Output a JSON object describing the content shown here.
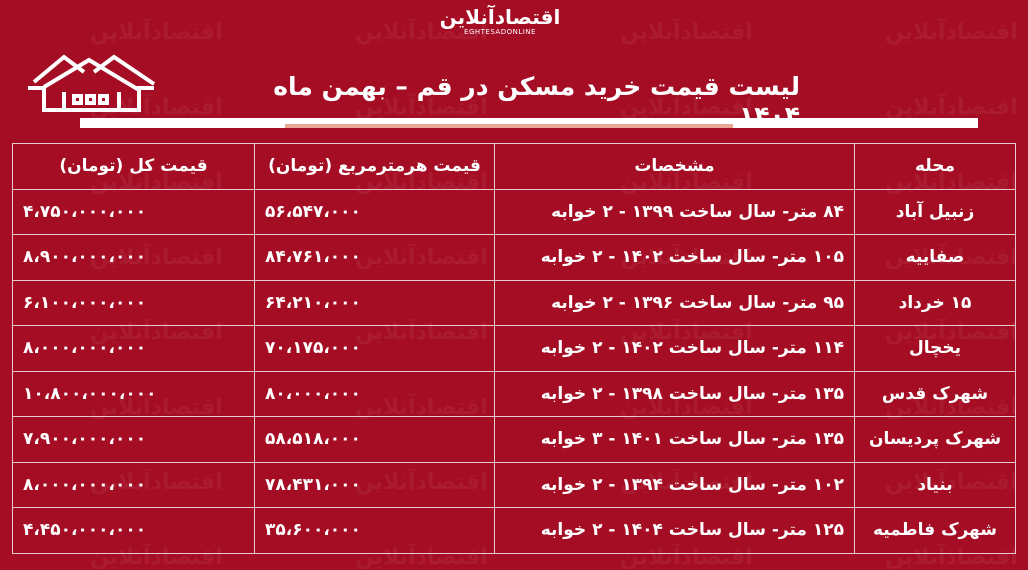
{
  "logo": {
    "fa": "اقتصادآنلاین",
    "en": "EGHTESADONLINE"
  },
  "title": "لیست قیمت خرید مسکن در قم – بهمن ماه ۱۴۰۴",
  "colors": {
    "background": "#a50d24",
    "text": "#ffffff",
    "accent_bar": "#e9a693"
  },
  "icons": [
    "house-icon"
  ],
  "table": {
    "headers": [
      "محله",
      "مشخصات",
      "قیمت هرمترمربع (تومان)",
      "قیمت کل (تومان)"
    ],
    "rows": [
      [
        "زنبیل آباد",
        "۸۴ متر- سال ساخت ۱۳۹۹ - ۲ خوابه",
        "۵۶،۵۴۷،۰۰۰",
        "۴،۷۵۰،۰۰۰،۰۰۰"
      ],
      [
        "صفاییه",
        "۱۰۵ متر- سال ساخت ۱۴۰۲ - ۲ خوابه",
        "۸۴،۷۶۱،۰۰۰",
        "۸،۹۰۰،۰۰۰،۰۰۰"
      ],
      [
        "۱۵ خرداد",
        "۹۵ متر- سال ساخت ۱۳۹۶ - ۲ خوابه",
        "۶۴،۲۱۰،۰۰۰",
        "۶،۱۰۰،۰۰۰،۰۰۰"
      ],
      [
        "یخچال",
        "۱۱۴ متر- سال ساخت ۱۴۰۲ - ۲ خوابه",
        "۷۰،۱۷۵،۰۰۰",
        "۸،۰۰۰،۰۰۰،۰۰۰"
      ],
      [
        "شهرک قدس",
        "۱۳۵ متر- سال ساخت ۱۳۹۸ - ۲ خوابه",
        "۸۰،۰۰۰،۰۰۰",
        "۱۰،۸۰۰،۰۰۰،۰۰۰"
      ],
      [
        "شهرک پردیسان",
        "۱۳۵ متر- سال ساخت ۱۴۰۱ - ۳ خوابه",
        "۵۸،۵۱۸،۰۰۰",
        "۷،۹۰۰،۰۰۰،۰۰۰"
      ],
      [
        "بنیاد",
        "۱۰۲ متر- سال ساخت ۱۳۹۴ - ۲ خوابه",
        "۷۸،۴۳۱،۰۰۰",
        "۸،۰۰۰،۰۰۰،۰۰۰"
      ],
      [
        "شهرک فاطمیه",
        "۱۲۵ متر- سال ساخت ۱۴۰۴ - ۲ خوابه",
        "۳۵،۶۰۰،۰۰۰",
        "۴،۴۵۰،۰۰۰،۰۰۰"
      ]
    ]
  }
}
